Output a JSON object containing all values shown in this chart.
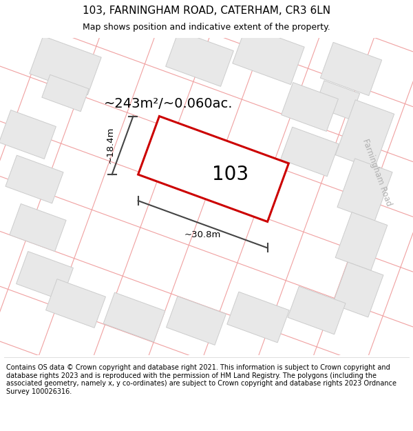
{
  "title": "103, FARNINGHAM ROAD, CATERHAM, CR3 6LN",
  "subtitle": "Map shows position and indicative extent of the property.",
  "footer": "Contains OS data © Crown copyright and database right 2021. This information is subject to Crown copyright and database rights 2023 and is reproduced with the permission of HM Land Registry. The polygons (including the associated geometry, namely x, y co-ordinates) are subject to Crown copyright and database rights 2023 Ordnance Survey 100026316.",
  "area_label": "~243m²/~0.060ac.",
  "dim_width": "~30.8m",
  "dim_height": "~18.4m",
  "property_number": "103",
  "road_label": "Farningham Road",
  "bg_color": "#ffffff",
  "map_bg": "#ffffff",
  "building_fill": "#e8e8e8",
  "building_edge_color": "#cccccc",
  "road_line_color": "#f0a0a0",
  "highlight_color": "#cc0000",
  "dim_color": "#444444",
  "title_fontsize": 11,
  "subtitle_fontsize": 9,
  "footer_fontsize": 7
}
